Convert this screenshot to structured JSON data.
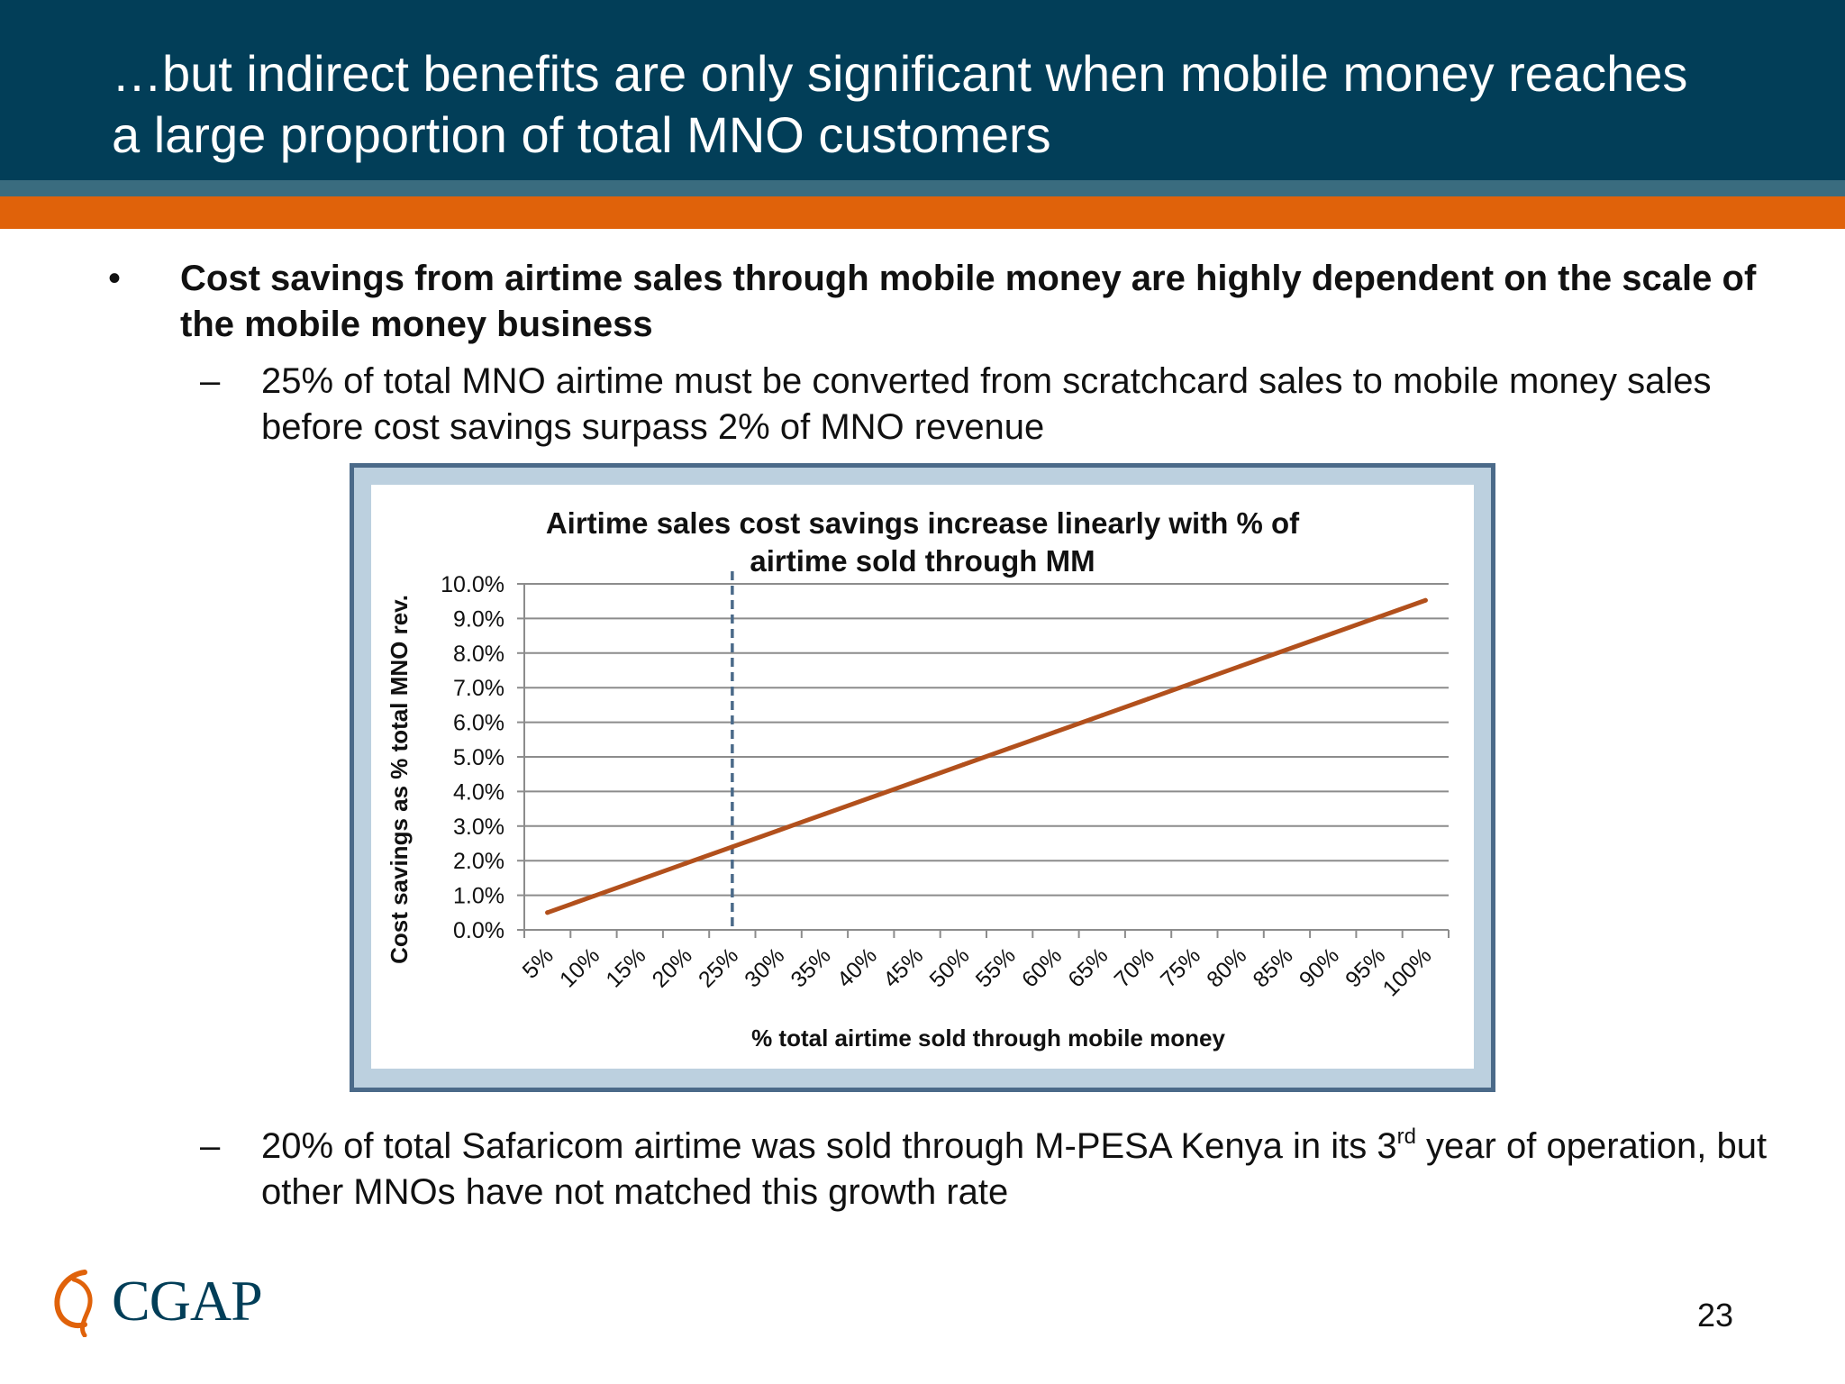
{
  "slide": {
    "title": "…but indirect benefits are only significant when mobile money reaches\na large proportion of total MNO customers",
    "bullet_mark": "•",
    "bullet1": "Cost savings from airtime sales through mobile money are highly dependent on the scale of the mobile money business",
    "dash": "–",
    "sub1": "25% of total MNO airtime must be converted from scratchcard sales to mobile money sales before cost savings surpass 2% of MNO revenue",
    "sub2_before": "20% of total Safaricom airtime was sold through M-PESA Kenya in its 3",
    "sub2_sup": "rd",
    "sub2_after": " year of operation, but other MNOs have not matched this growth rate",
    "logo_text": "CGAP",
    "page_number": "23"
  },
  "colors": {
    "header_bg": "#023e58",
    "teal_band": "#3a6c7f",
    "orange_band": "#e0620a",
    "series_line": "#b2501c",
    "marker_line": "#4b6a89",
    "frame_border": "#4b6a89",
    "frame_fill": "#bcd0df"
  },
  "chart_data": {
    "type": "line",
    "title": "Airtime sales cost savings increase linearly with % of airtime sold through MM",
    "xlabel": "% total airtime sold through mobile money",
    "ylabel": "Cost savings as % total MNO rev.",
    "categories": [
      "5%",
      "10%",
      "15%",
      "20%",
      "25%",
      "30%",
      "35%",
      "40%",
      "45%",
      "50%",
      "55%",
      "60%",
      "65%",
      "70%",
      "75%",
      "80%",
      "85%",
      "90%",
      "95%",
      "100%"
    ],
    "series": [
      {
        "values": [
          0.5,
          0.975,
          1.45,
          1.925,
          2.4,
          2.875,
          3.35,
          3.825,
          4.3,
          4.775,
          5.25,
          5.725,
          6.2,
          6.675,
          7.15,
          7.625,
          8.1,
          8.575,
          9.05,
          9.525
        ]
      }
    ],
    "y_ticks": [
      "0.0%",
      "1.0%",
      "2.0%",
      "3.0%",
      "4.0%",
      "5.0%",
      "6.0%",
      "7.0%",
      "8.0%",
      "9.0%",
      "10.0%"
    ],
    "ylim": [
      0,
      10
    ],
    "grid": true,
    "legend": "none",
    "vertical_marker": {
      "category": "25%",
      "style": "dashed"
    }
  }
}
